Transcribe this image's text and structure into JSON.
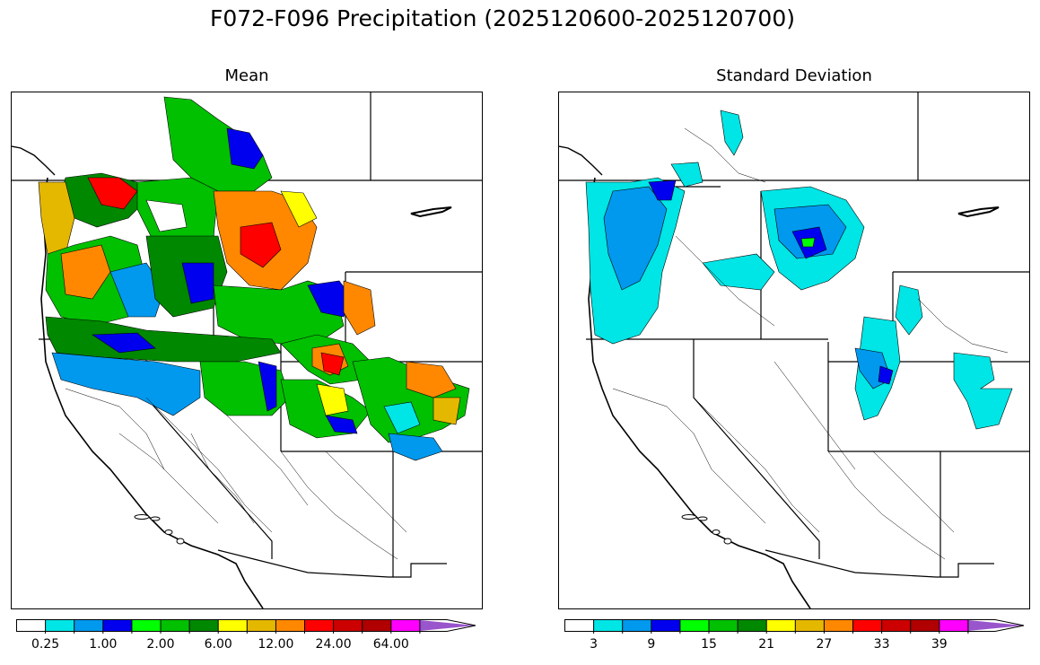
{
  "figure": {
    "title": "F072-F096 Precipitation (2025120600-2025120700)"
  },
  "panels": [
    {
      "title": "Mean",
      "colorbar": {
        "colors": [
          "#ffffff",
          "#00e5e5",
          "#0099ee",
          "#0000ee",
          "#00ff00",
          "#00c000",
          "#008800",
          "#ffff00",
          "#e5b800",
          "#ff8800",
          "#ff0000",
          "#cc0000",
          "#b00000",
          "#ff00ff",
          "#9955cc"
        ],
        "tick_labels": [
          "0.25",
          "1.00",
          "2.00",
          "6.00",
          "12.00",
          "24.00",
          "64.00"
        ],
        "extend": "max"
      }
    },
    {
      "title": "Standard Deviation",
      "colorbar": {
        "colors": [
          "#ffffff",
          "#00e5e5",
          "#0099ee",
          "#0000ee",
          "#00ff00",
          "#00c000",
          "#008800",
          "#ffff00",
          "#e5b800",
          "#ff8800",
          "#ff0000",
          "#cc0000",
          "#b00000",
          "#ff00ff",
          "#9955cc"
        ],
        "tick_labels": [
          "3",
          "9",
          "15",
          "21",
          "27",
          "33",
          "39"
        ],
        "extend": "max"
      }
    }
  ]
}
